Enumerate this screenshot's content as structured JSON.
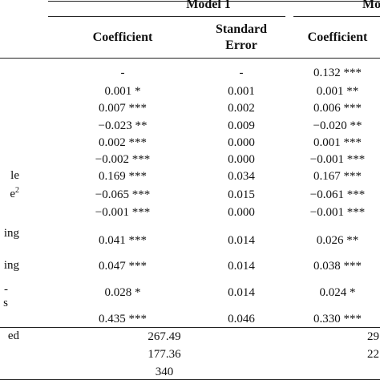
{
  "header": {
    "model1": "Model 1",
    "model2": "Mo",
    "col_coefficient": "Coefficient",
    "col_std_error_line1": "Standard",
    "col_std_error_line2": "Error",
    "col_coefficient2": "Coefficient"
  },
  "left_fragments": {
    "r7": "le",
    "r8": "e",
    "r8_sup": "2",
    "r10": "ing",
    "r11": "ing",
    "r12a": "-",
    "r12b": "s",
    "r14": "ed"
  },
  "rows": [
    {
      "c1": "-",
      "c2": "-",
      "c3": "0.132 ***"
    },
    {
      "c1": "0.001 *",
      "c2": "0.001",
      "c3": "0.001 **"
    },
    {
      "c1": "0.007 ***",
      "c2": "0.002",
      "c3": "0.006 ***"
    },
    {
      "c1": "−0.023 **",
      "c2": "0.009",
      "c3": "−0.020 **"
    },
    {
      "c1": "0.002 ***",
      "c2": "0.000",
      "c3": "0.001 ***"
    },
    {
      "c1": "−0.002 ***",
      "c2": "0.000",
      "c3": "−0.001 ***"
    },
    {
      "c1": "0.169 ***",
      "c2": "0.034",
      "c3": "0.167 ***"
    },
    {
      "c1": "−0.065 ***",
      "c2": "0.015",
      "c3": "−0.061 ***"
    },
    {
      "c1": "−0.001 ***",
      "c2": "0.000",
      "c3": "−0.001 ***"
    },
    {
      "c1": "0.041 ***",
      "c2": "0.014",
      "c3": "0.026 **"
    },
    {
      "c1": "0.047 ***",
      "c2": "0.014",
      "c3": "0.038 ***"
    },
    {
      "c1": "0.028 *",
      "c2": "0.014",
      "c3": "0.024 *"
    },
    {
      "c1": "0.435 ***",
      "c2": "0.046",
      "c3": "0.330 ***"
    }
  ],
  "summary": [
    {
      "value": "267.49",
      "right_fragment": "29"
    },
    {
      "value": "177.36",
      "right_fragment": "22"
    },
    {
      "value": "340",
      "right_fragment": ""
    }
  ]
}
